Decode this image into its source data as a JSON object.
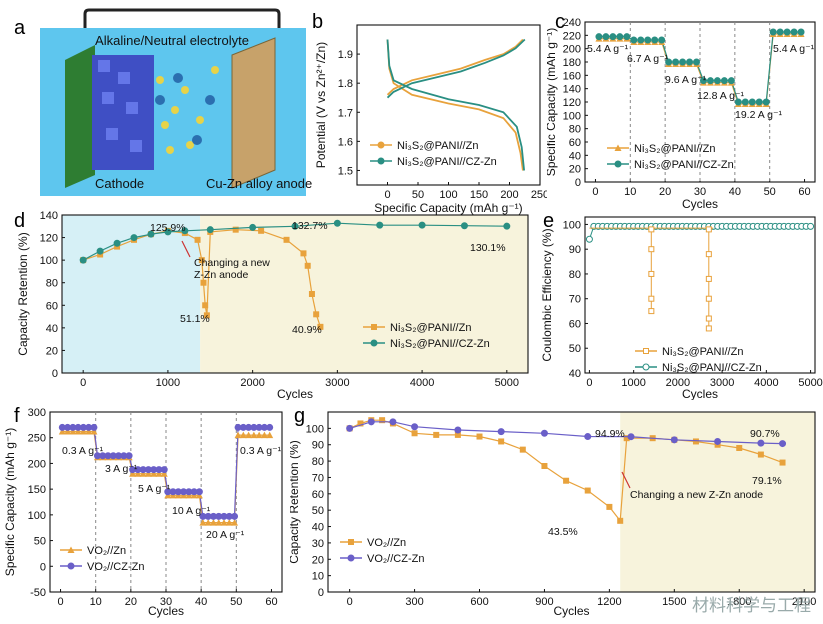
{
  "panel_letters": [
    "a",
    "b",
    "c",
    "d",
    "e",
    "f",
    "g"
  ],
  "diagram_a": {
    "top_label": "Alkaline/Neutral electrolyte",
    "cathode_label": "Cathode",
    "anode_label": "Cu-Zn alloy anode"
  },
  "colors": {
    "orange": "#e8a23c",
    "teal": "#2a8f83",
    "purple": "#6a5fc8",
    "shade_blue": "#d6f0f6",
    "shade_yellow": "#f7f3dc"
  },
  "chart_data": [
    {
      "id": "b",
      "type": "line",
      "xlabel": "Specific Capacity (mAh g⁻¹)",
      "ylabel": "Potential (V vs Zn²⁺/Zn)",
      "xlim": [
        -50,
        250
      ],
      "ylim": [
        1.45,
        2.0
      ],
      "xticks": [
        "0",
        "50",
        "100",
        "150",
        "200",
        "250"
      ],
      "yticks": [
        "1.5",
        "1.6",
        "1.7",
        "1.8",
        "1.9"
      ],
      "series": [
        {
          "name": "Ni₃S₂@PANI//Zn",
          "color": "#e8a23c",
          "charge": [
            [
              0,
              1.76
            ],
            [
              10,
              1.78
            ],
            [
              40,
              1.81
            ],
            [
              80,
              1.83
            ],
            [
              120,
              1.85
            ],
            [
              160,
              1.88
            ],
            [
              190,
              1.9
            ],
            [
              210,
              1.925
            ],
            [
              222,
              1.95
            ]
          ],
          "discharge": [
            [
              0,
              1.95
            ],
            [
              3,
              1.85
            ],
            [
              10,
              1.8
            ],
            [
              40,
              1.76
            ],
            [
              100,
              1.73
            ],
            [
              150,
              1.71
            ],
            [
              190,
              1.68
            ],
            [
              210,
              1.63
            ],
            [
              218,
              1.56
            ],
            [
              222,
              1.5
            ]
          ]
        },
        {
          "name": "Ni₃S₂@PANI//CZ-Zn",
          "color": "#2a8f83",
          "charge": [
            [
              0,
              1.75
            ],
            [
              10,
              1.77
            ],
            [
              40,
              1.8
            ],
            [
              80,
              1.82
            ],
            [
              120,
              1.84
            ],
            [
              160,
              1.87
            ],
            [
              190,
              1.895
            ],
            [
              210,
              1.92
            ],
            [
              225,
              1.95
            ]
          ],
          "discharge": [
            [
              0,
              1.95
            ],
            [
              3,
              1.86
            ],
            [
              10,
              1.81
            ],
            [
              40,
              1.78
            ],
            [
              100,
              1.745
            ],
            [
              150,
              1.725
            ],
            [
              190,
              1.7
            ],
            [
              212,
              1.65
            ],
            [
              220,
              1.58
            ],
            [
              224,
              1.5
            ]
          ]
        }
      ]
    },
    {
      "id": "c",
      "type": "line",
      "xlabel": "Cycles",
      "ylabel": "Specific Capacity (mAh g⁻¹)",
      "xlim": [
        -3,
        63
      ],
      "ylim": [
        0,
        240
      ],
      "xticks": [
        "0",
        "10",
        "20",
        "30",
        "40",
        "50",
        "60"
      ],
      "yticks": [
        "0",
        "20",
        "40",
        "60",
        "80",
        "100",
        "120",
        "140",
        "160",
        "180",
        "200",
        "220",
        "240"
      ],
      "rate_labels": [
        "5.4 A g⁻¹",
        "6.7 A g⁻¹",
        "9.6 A g⁻¹",
        "12.8 A g⁻¹",
        "19.2 A g⁻¹",
        "5.4 A g⁻¹"
      ],
      "steps": [
        [
          0,
          10,
          218
        ],
        [
          10,
          20,
          213
        ],
        [
          20,
          30,
          180
        ],
        [
          30,
          40,
          152
        ],
        [
          40,
          50,
          120
        ],
        [
          50,
          60,
          225
        ]
      ],
      "legend": [
        "Ni₃S₂@PANI//Zn",
        "Ni₃S₂@PANI//CZ-Zn"
      ]
    },
    {
      "id": "d",
      "type": "line",
      "xlabel": "Cycles",
      "ylabel": "Capacity Retention (%)",
      "xlim": [
        -250,
        5250
      ],
      "ylim": [
        0,
        140
      ],
      "xticks": [
        "0",
        "1000",
        "2000",
        "3000",
        "4000",
        "5000"
      ],
      "yticks": [
        "0",
        "20",
        "40",
        "60",
        "80",
        "100",
        "120",
        "140"
      ],
      "annotations": [
        "125.9%",
        "132.7%",
        "130.1%",
        "51.1%",
        "40.9%",
        "Changing a new",
        "Z-Zn anode"
      ],
      "series": [
        {
          "name": "Ni₃S₂@PANI//Zn",
          "color": "#e8a23c",
          "points": [
            [
              0,
              100
            ],
            [
              200,
              105
            ],
            [
              400,
              112
            ],
            [
              600,
              118
            ],
            [
              800,
              123
            ],
            [
              1000,
              125.9
            ],
            [
              1200,
              124
            ],
            [
              1350,
              118
            ],
            [
              1400,
              100
            ],
            [
              1420,
              80
            ],
            [
              1440,
              60
            ],
            [
              1460,
              51.1
            ],
            [
              1500,
              125
            ],
            [
              1800,
              127
            ],
            [
              2100,
              126
            ],
            [
              2400,
              118
            ],
            [
              2600,
              106
            ],
            [
              2650,
              95
            ],
            [
              2700,
              70
            ],
            [
              2750,
              52
            ],
            [
              2800,
              40.9
            ]
          ]
        },
        {
          "name": "Ni₃S₂@PANI//CZ-Zn",
          "color": "#2a8f83",
          "points": [
            [
              0,
              100
            ],
            [
              200,
              108
            ],
            [
              400,
              115
            ],
            [
              600,
              120
            ],
            [
              800,
              123
            ],
            [
              1000,
              125
            ],
            [
              1200,
              126
            ],
            [
              1500,
              127
            ],
            [
              2000,
              129
            ],
            [
              2500,
              130
            ],
            [
              3000,
              132.7
            ],
            [
              3500,
              131
            ],
            [
              4000,
              131
            ],
            [
              4500,
              130.5
            ],
            [
              5000,
              130.1
            ]
          ]
        }
      ]
    },
    {
      "id": "e",
      "type": "line",
      "xlabel": "Cycles",
      "ylabel": "Coulombic Efficiency (%)",
      "xlim": [
        -100,
        5100
      ],
      "ylim": [
        40,
        103
      ],
      "xticks": [
        "0",
        "1000",
        "2000",
        "3000",
        "4000",
        "5000"
      ],
      "yticks": [
        "40",
        "50",
        "60",
        "70",
        "80",
        "90",
        "100"
      ],
      "legend": [
        "Ni₃S₂@PANI//Zn",
        "Ni₃S₂@PANI//CZ-Zn"
      ]
    },
    {
      "id": "f",
      "type": "line",
      "xlabel": "Cycles",
      "ylabel": "Specific Capacity (mAh g⁻¹)",
      "xlim": [
        -3,
        63
      ],
      "ylim": [
        -50,
        300
      ],
      "xticks": [
        "0",
        "10",
        "20",
        "30",
        "40",
        "50",
        "60"
      ],
      "yticks": [
        "-50",
        "0",
        "50",
        "100",
        "150",
        "200",
        "250",
        "300"
      ],
      "rate_labels": [
        "0.3 A g⁻¹",
        "3 A g⁻¹",
        "5 A g⁻¹",
        "10 A g⁻¹",
        "20 A g⁻¹",
        "0.3 A g⁻¹"
      ],
      "steps_orange": [
        [
          0,
          10,
          262
        ],
        [
          10,
          20,
          212
        ],
        [
          20,
          30,
          180
        ],
        [
          30,
          40,
          138
        ],
        [
          40,
          50,
          85
        ],
        [
          50,
          60,
          255
        ]
      ],
      "steps_purple": [
        [
          0,
          10,
          270
        ],
        [
          10,
          20,
          215
        ],
        [
          20,
          30,
          188
        ],
        [
          30,
          40,
          145
        ],
        [
          40,
          50,
          97
        ],
        [
          50,
          60,
          270
        ]
      ],
      "legend": [
        "VO₂//Zn",
        "VO₂//CZ-Zn"
      ]
    },
    {
      "id": "g",
      "type": "line",
      "xlabel": "Cycles",
      "ylabel": "Capacity Retention (%)",
      "xlim": [
        -100,
        2150
      ],
      "ylim": [
        0,
        110
      ],
      "xticks": [
        "0",
        "300",
        "600",
        "900",
        "1200",
        "1500",
        "1800",
        "2100"
      ],
      "yticks": [
        "0",
        "10",
        "20",
        "30",
        "40",
        "50",
        "60",
        "70",
        "80",
        "90",
        "100"
      ],
      "annotations": [
        "94.9%",
        "90.7%",
        "79.1%",
        "43.5%",
        "Changing a new Z-Zn anode"
      ],
      "series": [
        {
          "name": "VO₂//Zn",
          "color": "#e8a23c",
          "points": [
            [
              0,
              100
            ],
            [
              50,
              103
            ],
            [
              100,
              105
            ],
            [
              150,
              105
            ],
            [
              200,
              103
            ],
            [
              300,
              97
            ],
            [
              400,
              96
            ],
            [
              500,
              96
            ],
            [
              600,
              95
            ],
            [
              700,
              92
            ],
            [
              800,
              87
            ],
            [
              900,
              77
            ],
            [
              1000,
              68
            ],
            [
              1100,
              62
            ],
            [
              1200,
              52
            ],
            [
              1250,
              43.5
            ],
            [
              1280,
              94
            ],
            [
              1400,
              94
            ],
            [
              1500,
              93
            ],
            [
              1600,
              92
            ],
            [
              1700,
              90
            ],
            [
              1800,
              88
            ],
            [
              1900,
              84
            ],
            [
              2000,
              79.1
            ]
          ]
        },
        {
          "name": "VO₂//CZ-Zn",
          "color": "#6a5fc8",
          "points": [
            [
              0,
              100
            ],
            [
              100,
              104
            ],
            [
              200,
              104
            ],
            [
              300,
              101
            ],
            [
              500,
              99
            ],
            [
              700,
              98
            ],
            [
              900,
              97
            ],
            [
              1100,
              95
            ],
            [
              1300,
              94.9
            ],
            [
              1500,
              93
            ],
            [
              1700,
              92
            ],
            [
              1900,
              91
            ],
            [
              2000,
              90.7
            ]
          ]
        }
      ]
    }
  ],
  "watermark": "材料科学与工程"
}
